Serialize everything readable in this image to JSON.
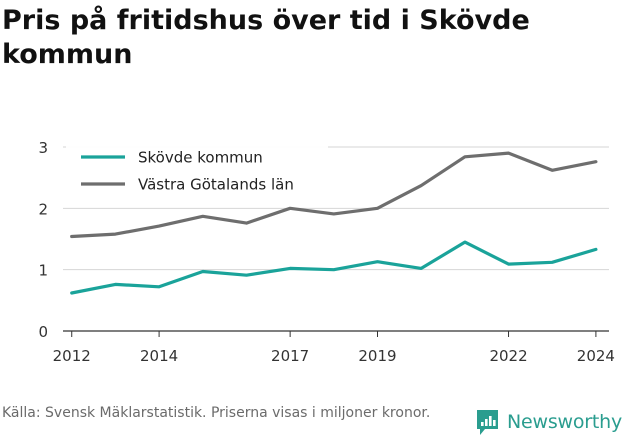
{
  "title": "Pris på fritidshus över tid i Skövde kommun",
  "source": "Källa: Svensk Mäklarstatistik. Priserna visas i miljoner kronor.",
  "brand": {
    "name": "Newsworthy",
    "icon": "newsworthy-logo-icon",
    "color": "#2a9d8f"
  },
  "chart_data": {
    "type": "line",
    "title": "Pris på fritidshus över tid i Skövde kommun",
    "xlabel": "",
    "ylabel": "",
    "xlim": [
      2011.8,
      2024.3
    ],
    "ylim": [
      0,
      3
    ],
    "x_ticks": [
      2012,
      2014,
      2017,
      2019,
      2022,
      2024
    ],
    "y_ticks": [
      0,
      1,
      2,
      3
    ],
    "grid": true,
    "legend_position": "top-left",
    "series": [
      {
        "name": "Skövde kommun",
        "color": "#1aa39a",
        "x": [
          2012,
          2013,
          2014,
          2015,
          2016,
          2017,
          2018,
          2019,
          2020,
          2021,
          2022,
          2023,
          2024
        ],
        "values": [
          0.62,
          0.76,
          0.72,
          0.97,
          0.91,
          1.02,
          1.0,
          1.13,
          1.02,
          1.45,
          1.09,
          1.12,
          1.33
        ]
      },
      {
        "name": "Västra Götalands län",
        "color": "#6e6e6e",
        "x": [
          2012,
          2013,
          2014,
          2015,
          2016,
          2017,
          2018,
          2019,
          2020,
          2021,
          2022,
          2023,
          2024
        ],
        "values": [
          1.54,
          1.58,
          1.71,
          1.87,
          1.76,
          2.0,
          1.91,
          2.0,
          2.37,
          2.84,
          2.9,
          2.62,
          2.76
        ]
      }
    ]
  }
}
